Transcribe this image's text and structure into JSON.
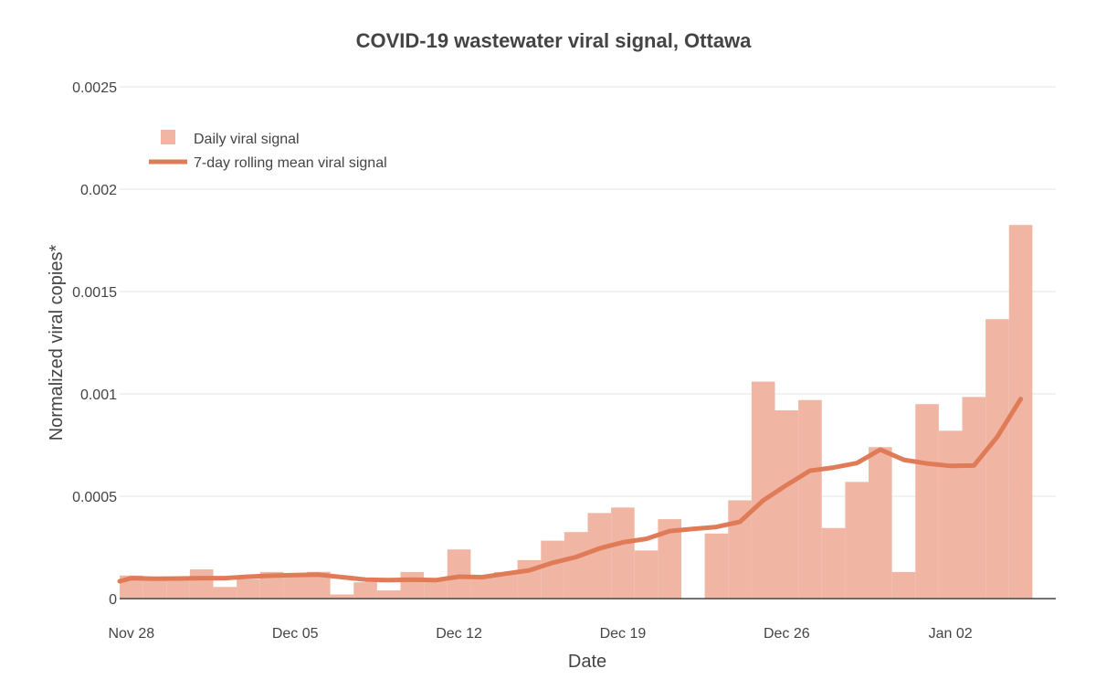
{
  "chart_data": {
    "type": "bar",
    "title": "COVID-19 wastewater viral signal, Ottawa",
    "xlabel": "Date",
    "ylabel": "Normalized viral copies*",
    "ylim": [
      0,
      0.0025
    ],
    "y_ticks": [
      "0",
      "0.0005",
      "0.001",
      "0.0015",
      "0.002",
      "0.0025"
    ],
    "x_ticks": [
      {
        "date": "2021-11-28",
        "label": "Nov 28"
      },
      {
        "date": "2021-12-05",
        "label": "Dec 05"
      },
      {
        "date": "2021-12-12",
        "label": "Dec 12"
      },
      {
        "date": "2021-12-19",
        "label": "Dec 19"
      },
      {
        "date": "2021-12-26",
        "label": "Dec 26"
      },
      {
        "date": "2022-01-02",
        "label": "Jan 02"
      }
    ],
    "grid": true,
    "legend_position": "top-left",
    "colors": {
      "bar": "#f0b6a3",
      "line": "#e07b57",
      "grid": "#e6e6e6",
      "axis": "#444444",
      "text": "#444444"
    },
    "series": [
      {
        "name": "Daily viral signal",
        "type": "bar",
        "x": [
          "2021-11-28",
          "2021-11-29",
          "2021-11-30",
          "2021-12-01",
          "2021-12-02",
          "2021-12-03",
          "2021-12-04",
          "2021-12-05",
          "2021-12-06",
          "2021-12-07",
          "2021-12-08",
          "2021-12-09",
          "2021-12-10",
          "2021-12-11",
          "2021-12-12",
          "2021-12-13",
          "2021-12-14",
          "2021-12-15",
          "2021-12-16",
          "2021-12-17",
          "2021-12-18",
          "2021-12-19",
          "2021-12-20",
          "2021-12-21",
          "2021-12-22",
          "2021-12-23",
          "2021-12-24",
          "2021-12-25",
          "2021-12-26",
          "2021-12-27",
          "2021-12-28",
          "2021-12-29",
          "2021-12-30",
          "2021-12-31",
          "2022-01-01",
          "2022-01-02",
          "2022-01-03",
          "2022-01-04",
          "2022-01-05",
          "2022-01-06"
        ],
        "y": [
          0.000113,
          9.5e-05,
          9.5e-05,
          0.000143,
          5.7e-05,
          9.5e-05,
          0.00013,
          0.000122,
          0.000131,
          2e-05,
          8e-05,
          4e-05,
          0.00013,
          9.8e-05,
          0.00024,
          0.000108,
          0.00013,
          0.000188,
          0.000283,
          0.000325,
          0.000418,
          0.000445,
          0.000235,
          0.000388,
          0.0,
          0.000318,
          0.00048,
          0.00106,
          0.00092,
          0.00097,
          0.000345,
          0.00057,
          0.00074,
          0.00013,
          0.00095,
          0.00082,
          0.000985,
          0.001365,
          0.001825,
          0.0
        ]
      },
      {
        "name": "7-day rolling mean viral signal",
        "type": "line",
        "x": [
          "2021-11-27",
          "2021-11-28",
          "2021-11-29",
          "2021-11-30",
          "2021-12-01",
          "2021-12-02",
          "2021-12-03",
          "2021-12-04",
          "2021-12-05",
          "2021-12-06",
          "2021-12-07",
          "2021-12-08",
          "2021-12-09",
          "2021-12-10",
          "2021-12-11",
          "2021-12-12",
          "2021-12-13",
          "2021-12-14",
          "2021-12-15",
          "2021-12-16",
          "2021-12-17",
          "2021-12-18",
          "2021-12-19",
          "2021-12-20",
          "2021-12-21",
          "2021-12-22",
          "2021-12-23",
          "2021-12-24",
          "2021-12-25",
          "2021-12-26",
          "2021-12-27",
          "2021-12-28",
          "2021-12-29",
          "2021-12-30",
          "2021-12-31",
          "2022-01-01",
          "2022-01-02",
          "2022-01-03",
          "2022-01-04",
          "2022-01-05"
        ],
        "y": [
          8.5e-05,
          0.0001,
          9.7e-05,
          9.8e-05,
          0.0001,
          0.0001,
          0.000107,
          0.000112,
          0.000115,
          0.000117,
          0.000105,
          9.3e-05,
          9e-05,
          9.3e-05,
          9e-05,
          0.000107,
          0.000105,
          0.000122,
          0.000138,
          0.000175,
          0.000203,
          0.000245,
          0.000275,
          0.000292,
          0.00033,
          0.00034,
          0.00035,
          0.000375,
          0.00048,
          0.000555,
          0.000625,
          0.00064,
          0.000662,
          0.000728,
          0.000678,
          0.00066,
          0.000648,
          0.00065,
          0.00079,
          0.000975
        ]
      }
    ]
  }
}
